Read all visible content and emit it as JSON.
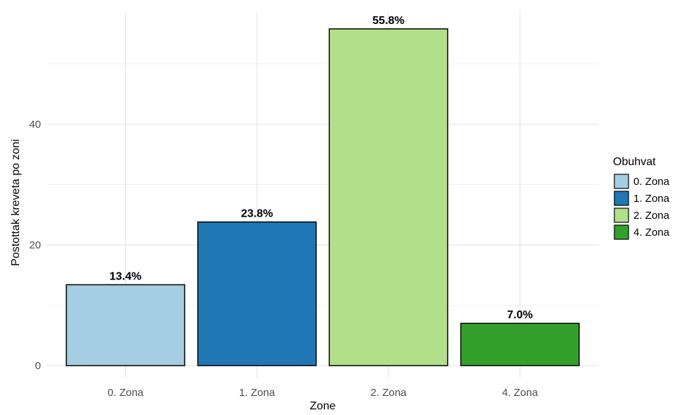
{
  "chart_data": {
    "type": "bar",
    "categories": [
      "0. Zona",
      "1. Zona",
      "2. Zona",
      "4. Zona"
    ],
    "values": [
      13.4,
      23.8,
      55.8,
      7.0
    ],
    "data_labels": [
      "13.4%",
      "23.8%",
      "55.8%",
      "7.0%"
    ],
    "colors": [
      "#a6cee3",
      "#1f78b4",
      "#b2df8a",
      "#33a02c"
    ],
    "title": "",
    "xlabel": "Zone",
    "ylabel": "Postottak kreveta po zoni",
    "ylim": [
      0,
      58.6
    ],
    "yticks": [
      0,
      20,
      40
    ],
    "ytick_labels": [
      "0",
      "20",
      "40"
    ],
    "grid": true,
    "legend": {
      "title": "Obuhvat",
      "position": "right",
      "entries": [
        "0. Zona",
        "1. Zona",
        "2. Zona",
        "4. Zona"
      ]
    }
  }
}
